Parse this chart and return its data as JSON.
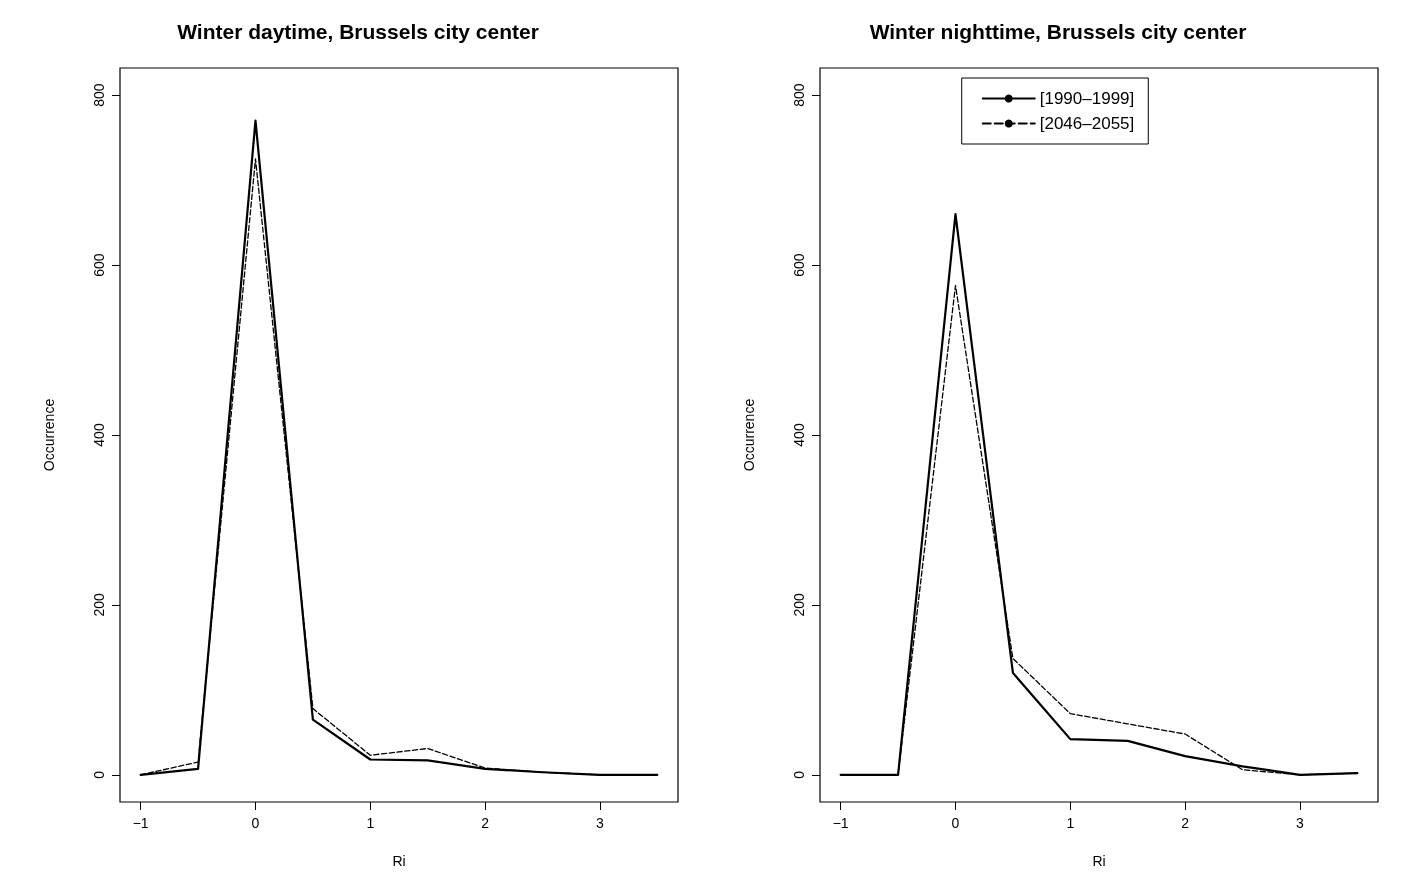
{
  "chart_data": [
    {
      "type": "line",
      "title": "Winter daytime, Brussels city center",
      "xlabel": "Ri",
      "ylabel": "Occurrence",
      "x": [
        -1,
        -0.5,
        0,
        0.5,
        1,
        1.5,
        2,
        2.5,
        3,
        3.5
      ],
      "series": [
        {
          "color": "#000000",
          "line_style": "solid",
          "values": [
            0,
            7,
            770,
            65,
            18,
            17,
            7,
            3,
            0,
            0
          ]
        },
        {
          "color": "#000000",
          "line_style": "dashed",
          "values": [
            0,
            15,
            725,
            78,
            23,
            31,
            8,
            3,
            0,
            0
          ]
        }
      ],
      "xlim": [
        -1.18,
        3.68
      ],
      "xticks": [
        -1,
        0,
        1,
        2,
        3
      ],
      "ylim": [
        -32,
        832
      ],
      "yticks": [
        0,
        200,
        400,
        600,
        800
      ],
      "grid": false,
      "legend": false,
      "marker": "none"
    },
    {
      "type": "line",
      "title": "Winter nighttime, Brussels city center",
      "xlabel": "Ri",
      "ylabel": "Occurrence",
      "x": [
        -1,
        -0.5,
        0,
        0.5,
        1,
        1.5,
        2,
        2.5,
        3,
        3.5
      ],
      "series": [
        {
          "name": "[1990–1999]",
          "color": "#000000",
          "line_style": "solid",
          "values": [
            0,
            0,
            660,
            120,
            42,
            40,
            22,
            10,
            0,
            2
          ]
        },
        {
          "name": "[2046–2055]",
          "color": "#000000",
          "line_style": "dashed",
          "values": [
            0,
            0,
            576,
            137,
            72,
            60,
            48,
            6,
            0,
            2
          ]
        }
      ],
      "xlim": [
        -1.18,
        3.68
      ],
      "xticks": [
        -1,
        0,
        1,
        2,
        3
      ],
      "ylim": [
        -32,
        832
      ],
      "yticks": [
        0,
        200,
        400,
        600,
        800
      ],
      "grid": false,
      "legend": "top",
      "marker": "none"
    }
  ]
}
